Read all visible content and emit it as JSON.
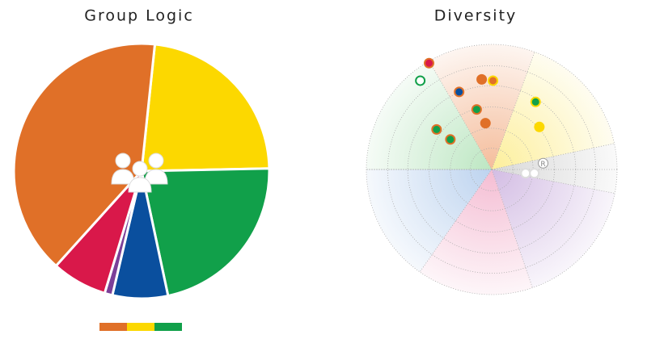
{
  "chart_data": [
    {
      "type": "pie",
      "title": "Group Logic",
      "values": [
        23,
        22,
        7,
        1,
        7,
        40
      ],
      "colors": [
        "#fcd800",
        "#11a04a",
        "#0a4f9e",
        "#7b3f98",
        "#d9184a",
        "#e07028"
      ],
      "start_angle": 6,
      "bar_colors": [
        "#e07028",
        "#fcd800",
        "#11a04a"
      ]
    },
    {
      "type": "polar",
      "title": "Diversity",
      "sectors": [
        {
          "color": "#f0a070",
          "start": -30,
          "end": 20
        },
        {
          "color": "#fce870",
          "start": 20,
          "end": 78
        },
        {
          "color": "#c8c8c8",
          "start": 78,
          "end": 101
        },
        {
          "color": "#c0a0d8",
          "start": 101,
          "end": 161
        },
        {
          "color": "#f0a0c0",
          "start": 161,
          "end": 215
        },
        {
          "color": "#a0c0e8",
          "start": 215,
          "end": 270
        },
        {
          "color": "#a0dca8",
          "start": 270,
          "end": 330
        }
      ],
      "rings": [
        0.17,
        0.33,
        0.5,
        0.67,
        0.83,
        1
      ],
      "xlim": [
        -1,
        1
      ],
      "ylim": [
        -1,
        1
      ],
      "x": [
        -0.5,
        -0.57,
        -0.08,
        0.01,
        -0.26,
        -0.12,
        -0.05,
        -0.44,
        -0.33,
        0.35,
        0.38,
        0.27,
        0.34
      ],
      "y": [
        0.85,
        0.71,
        0.72,
        0.71,
        0.62,
        0.48,
        0.37,
        0.32,
        0.24,
        0.54,
        0.34,
        -0.03,
        -0.03
      ],
      "fills": [
        "#d9184a",
        "#ffffff",
        "#e07028",
        "#e07028",
        "#0a4f9e",
        "#11a04a",
        "#e07028",
        "#11a04a",
        "#11a04a",
        "#11a04a",
        "#fcd800",
        "#ffffff",
        "#ffffff"
      ],
      "strokes": [
        "#e07028",
        "#11a04a",
        "#e07028",
        "#fcd800",
        "#e07028",
        "#e07028",
        "#e07028",
        "#e07028",
        "#e07028",
        "#fcd800",
        "#fcd800",
        "#dddddd",
        "#dddddd"
      ],
      "annotation": {
        "text": "R",
        "x": 0.41,
        "y": 0.05
      }
    }
  ]
}
